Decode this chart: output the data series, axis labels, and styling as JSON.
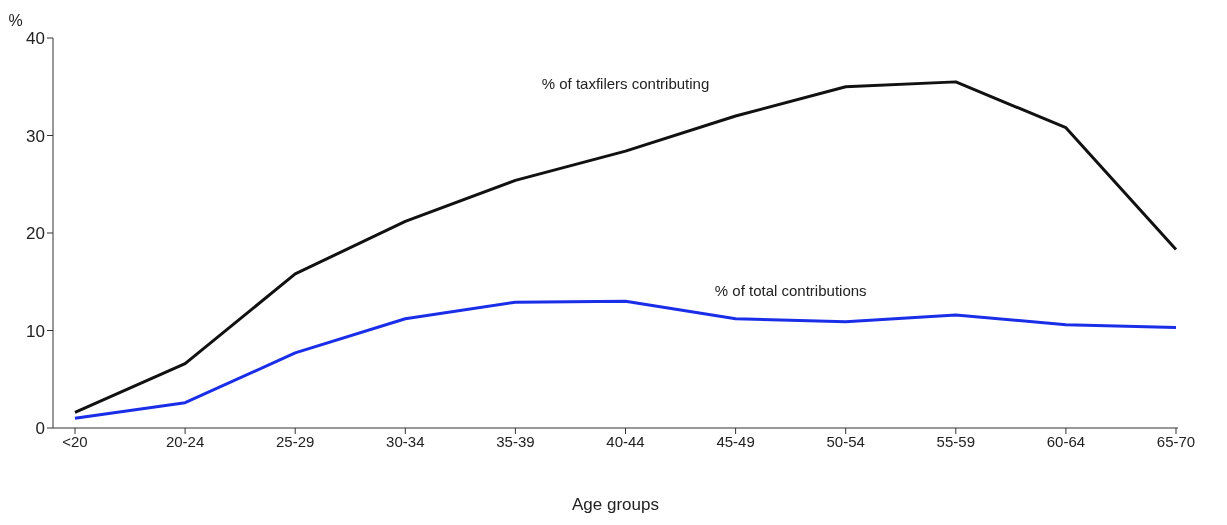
{
  "chart_data": {
    "type": "line",
    "ylabel": "%",
    "xlabel": "Age groups",
    "categories": [
      "<20",
      "20-24",
      "25-29",
      "30-34",
      "35-39",
      "40-44",
      "45-49",
      "50-54",
      "55-59",
      "60-64",
      "65-70"
    ],
    "series": [
      {
        "name": "% of taxfilers contributing",
        "color": "#111111",
        "values": [
          1.6,
          6.6,
          15.8,
          21.2,
          25.4,
          28.4,
          32,
          35,
          35.5,
          30.8,
          18.3
        ]
      },
      {
        "name": "% of total contributions",
        "color": "#1a2ee8",
        "values": [
          1.0,
          2.6,
          7.7,
          11.2,
          12.9,
          13.0,
          11.2,
          10.9,
          11.6,
          10.6,
          10.3
        ]
      }
    ],
    "ylim": [
      0,
      40
    ],
    "yticks": [
      0,
      10,
      20,
      30,
      40
    ],
    "grid": false,
    "legend": false,
    "marker": "none",
    "line_style": "solid"
  }
}
